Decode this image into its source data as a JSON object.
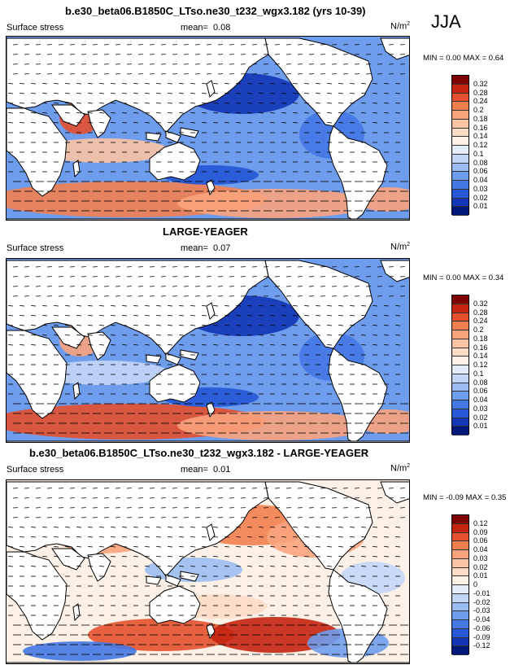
{
  "season": "JJA",
  "panels": [
    {
      "title": "b.e30_beta06.B1850C_LTso.ne30_t232_wgx3.182 (yrs 10-39)",
      "field": "Surface stress",
      "mean_label": "mean=",
      "mean_value": "0.08",
      "units": "N/m",
      "units_exp": "2",
      "minmax": "MIN =  0.00 MAX =  0.64",
      "levels": [
        "0.32",
        "0.28",
        "0.24",
        "0.2",
        "0.18",
        "0.16",
        "0.14",
        "0.12",
        "0.1",
        "0.08",
        "0.06",
        "0.04",
        "0.03",
        "0.02",
        "0.01"
      ],
      "colors": [
        "#7f0000",
        "#c52410",
        "#e4502d",
        "#f2804f",
        "#f9a37d",
        "#fbc4a4",
        "#fcdcc7",
        "#fdf0e6",
        "#e4ecfa",
        "#c4d6f7",
        "#9bbcf2",
        "#6f9ded",
        "#4478e3",
        "#2557d6",
        "#1236b5",
        "#00187a"
      ]
    },
    {
      "title": "LARGE-YEAGER",
      "field": "Surface stress",
      "mean_label": "mean=",
      "mean_value": "0.07",
      "units": "N/m",
      "units_exp": "2",
      "minmax": "MIN =  0.00 MAX =  0.34",
      "levels": [
        "0.32",
        "0.28",
        "0.24",
        "0.2",
        "0.18",
        "0.16",
        "0.14",
        "0.12",
        "0.1",
        "0.08",
        "0.06",
        "0.04",
        "0.03",
        "0.02",
        "0.01"
      ],
      "colors": [
        "#7f0000",
        "#c52410",
        "#e4502d",
        "#f2804f",
        "#f9a37d",
        "#fbc4a4",
        "#fcdcc7",
        "#fdf0e6",
        "#e4ecfa",
        "#c4d6f7",
        "#9bbcf2",
        "#6f9ded",
        "#4478e3",
        "#2557d6",
        "#1236b5",
        "#00187a"
      ]
    },
    {
      "title": "b.e30_beta06.B1850C_LTso.ne30_t232_wgx3.182 - LARGE-YEAGER",
      "field": "Surface stress",
      "mean_label": "mean=",
      "mean_value": "0.01",
      "units": "N/m",
      "units_exp": "2",
      "minmax": "MIN = -0.09 MAX =  0.35",
      "levels": [
        "0.12",
        "0.09",
        "0.06",
        "0.04",
        "0.03",
        "0.02",
        "0.01",
        "0",
        "-0.01",
        "-0.02",
        "-0.03",
        "-0.04",
        "-0.06",
        "-0.09",
        "-0.12"
      ],
      "colors": [
        "#7f0000",
        "#c52410",
        "#e4502d",
        "#f2804f",
        "#f9a37d",
        "#fbc4a4",
        "#fcdcc7",
        "#fdf0e6",
        "#e4ecfa",
        "#c4d6f7",
        "#9bbcf2",
        "#6f9ded",
        "#4478e3",
        "#2557d6",
        "#1236b5",
        "#00187a"
      ]
    }
  ]
}
